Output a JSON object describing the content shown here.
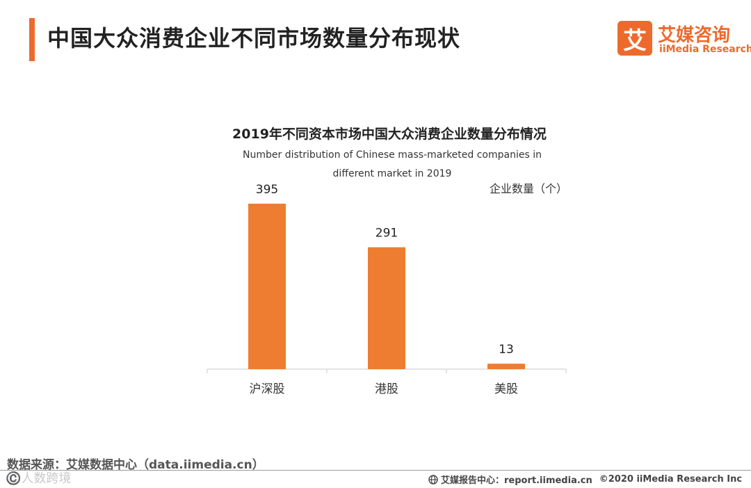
{
  "header": {
    "title": "中国大众消费企业不同市场数量分布现状",
    "logo_mark": "艾",
    "logo_cn": "艾媒咨询",
    "logo_en": "iiMedia Research"
  },
  "chart_data": {
    "type": "bar",
    "title": "2019年不同资本市场中国大众消费企业数量分布情况",
    "subtitle_line1": "Number distribution of Chinese mass-marketed companies in",
    "subtitle_line2": "different market in 2019",
    "ylabel": "企业数量（个）",
    "xlabel": "",
    "categories": [
      "沪深股",
      "港股",
      "美股"
    ],
    "values": [
      395,
      291,
      13
    ],
    "ylim": [
      0,
      400
    ],
    "grid": false,
    "bar_color": "#ee7d31"
  },
  "footer": {
    "source": "数据来源：艾媒数据中心（data.iimedia.cn）",
    "watermark": "©️人数跨境",
    "report": "艾媒报告中心：report.iimedia.cn",
    "copyright": "©2020  iiMedia Research  Inc"
  },
  "colors": {
    "accent": "#ee6a2c",
    "bar": "#ee7d31"
  }
}
